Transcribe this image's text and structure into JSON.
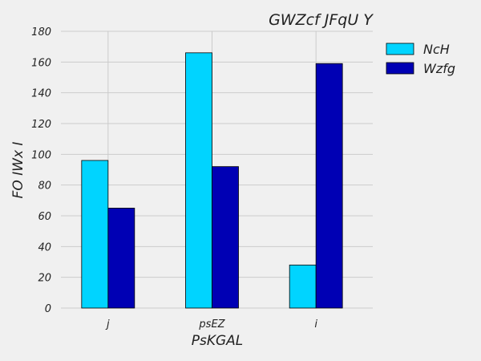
{
  "chart_data": {
    "type": "bar",
    "title": "GWZcf  JFqU Y",
    "xlabel": "PsKGAL",
    "ylabel": "FO IWx I",
    "categories": [
      "j",
      "psEZ",
      "i"
    ],
    "series": [
      {
        "name": "NcH",
        "values": [
          96,
          166,
          28
        ],
        "color": "#00d4ff"
      },
      {
        "name": "Wzfg",
        "values": [
          65,
          92,
          159
        ],
        "color": "#0000b4"
      }
    ],
    "ylim": [
      0,
      180
    ],
    "yticks": [
      0,
      20,
      40,
      60,
      80,
      100,
      120,
      140,
      160,
      180
    ],
    "grid": true,
    "legend_position": "top-right"
  }
}
